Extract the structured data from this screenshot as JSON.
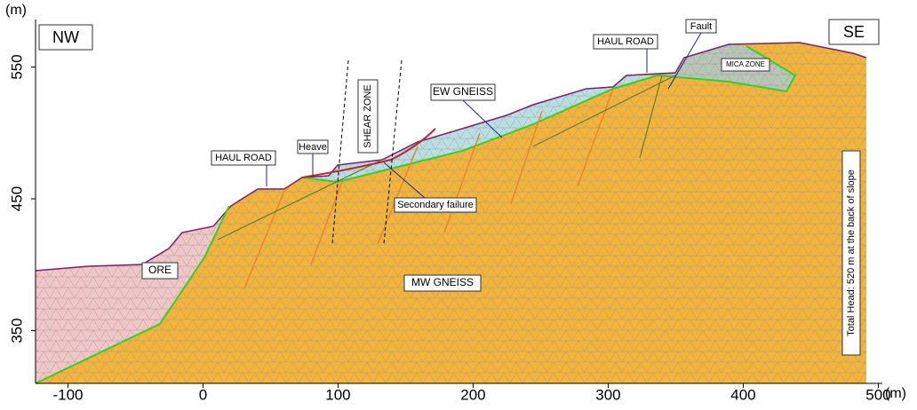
{
  "axes": {
    "x_label": "(m)",
    "y_label": "(m)",
    "xlim": [
      -124,
      503
    ],
    "ylim": [
      310,
      586
    ],
    "xticks": [
      -100,
      0,
      100,
      200,
      300,
      400,
      500
    ],
    "yticks": [
      350,
      450,
      550
    ]
  },
  "labels": {
    "nw": "NW",
    "se": "SE",
    "haul_road_left": "HAUL ROAD",
    "haul_road_right": "HAUL ROAD",
    "heave": "Heave",
    "shear_zone": "SHEAR ZONE",
    "ew_gneiss": "EW GNEISS",
    "secondary_failure": "Secondary failure",
    "fault": "Fault",
    "mica_zone": "MICA ZONE",
    "ore": "ORE",
    "mw_gneiss": "MW GNEISS",
    "total_head": "Total Head: 520 m at the back of slope"
  }
}
